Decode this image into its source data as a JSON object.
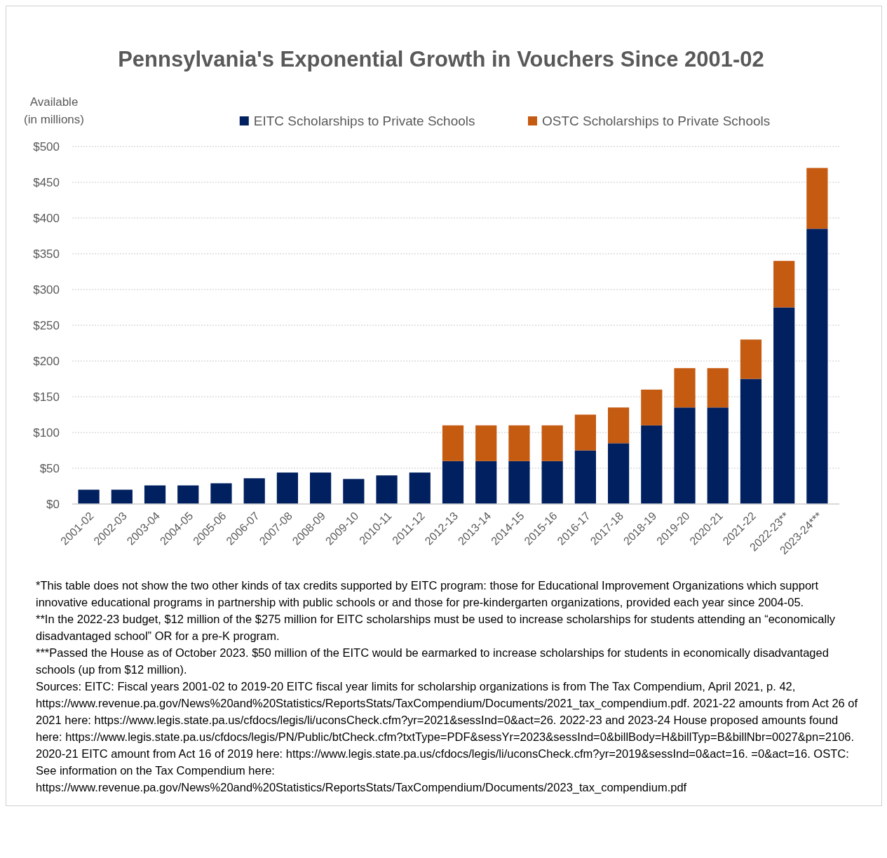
{
  "chart_data": {
    "type": "bar",
    "stacked": true,
    "title": "Pennsylvania's Exponential Growth in Vouchers Since 2001-02",
    "ylabel": "Available\n(in millions)",
    "categories": [
      "2001-02",
      "2002-03",
      "2003-04",
      "2004-05",
      "2005-06",
      "2006-07",
      "2007-08",
      "2008-09",
      "2009-10",
      "2010-11",
      "2011-12",
      "2012-13",
      "2013-14",
      "2014-15",
      "2015-16",
      "2016-17",
      "2017-18",
      "2018-19",
      "2019-20",
      "2020-21",
      "2021-22",
      "2022-23**",
      "2023-24***"
    ],
    "series": [
      {
        "name": "EITC Scholarships to Private Schools",
        "color": "#002060",
        "values": [
          20,
          20,
          26,
          26,
          29,
          36,
          44,
          44,
          35,
          40,
          44,
          60,
          60,
          60,
          60,
          75,
          85,
          110,
          135,
          135,
          175,
          275,
          385
        ]
      },
      {
        "name": "OSTC Scholarships to Private Schools",
        "color": "#c55a11",
        "values": [
          null,
          null,
          null,
          null,
          null,
          null,
          null,
          null,
          null,
          null,
          null,
          50,
          50,
          50,
          50,
          50,
          50,
          50,
          55,
          55,
          55,
          65,
          85
        ]
      }
    ],
    "ylim": [
      0,
      500
    ],
    "yticks": [
      {
        "value": 0,
        "label": "$0"
      },
      {
        "value": 50,
        "label": "$50"
      },
      {
        "value": 100,
        "label": "$100"
      },
      {
        "value": 150,
        "label": "$150"
      },
      {
        "value": 200,
        "label": "$200"
      },
      {
        "value": 250,
        "label": "$250"
      },
      {
        "value": 300,
        "label": "$300"
      },
      {
        "value": 350,
        "label": "$350"
      },
      {
        "value": 400,
        "label": "$400"
      },
      {
        "value": 450,
        "label": "$450"
      },
      {
        "value": 500,
        "label": "$500"
      }
    ],
    "grid": "y",
    "legend": "top",
    "annotations": [
      "*This table does not show the two other kinds of tax credits supported by EITC program: those for Educational Improvement Organizations which support innovative educational programs in partnership with public schools or and those for pre-kindergarten organizations, provided each year since 2004-05.",
      "**In the 2022-23 budget, $12 million of the $275 million for EITC scholarships must be used to increase scholarships for students attending an “economically disadvantaged school” OR for a pre-K program.",
      "***Passed the House as of October 2023. $50 million of the EITC would be earmarked to increase scholarships for students in economically disadvantaged schools (up from $12 million).",
      "Sources: EITC: Fiscal years 2001-02 to 2019-20 EITC fiscal year limits for scholarship organizations is from The Tax Compendium, April 2021, p. 42, https://www.revenue.pa.gov/News%20and%20Statistics/ReportsStats/TaxCompendium/Documents/2021_tax_compendium.pdf. 2021-22 amounts from Act 26 of 2021 here: https://www.legis.state.pa.us/cfdocs/legis/li/uconsCheck.cfm?yr=2021&sessInd=0&act=26. 2022-23 and 2023-24 House proposed amounts found here: https://www.legis.state.pa.us/cfdocs/legis/PN/Public/btCheck.cfm?txtType=PDF&sessYr=2023&sessInd=0&billBody=H&billTyp=B&billNbr=0027&pn=2106. 2020-21 EITC amount from Act 16 of 2019 here: https://www.legis.state.pa.us/cfdocs/legis/li/uconsCheck.cfm?yr=2019&sessInd=0&act=16. =0&act=16. OSTC: See information on the Tax Compendium here: https://www.revenue.pa.gov/News%20and%20Statistics/ReportsStats/TaxCompendium/Documents/2023_tax_compendium.pdf"
    ]
  }
}
